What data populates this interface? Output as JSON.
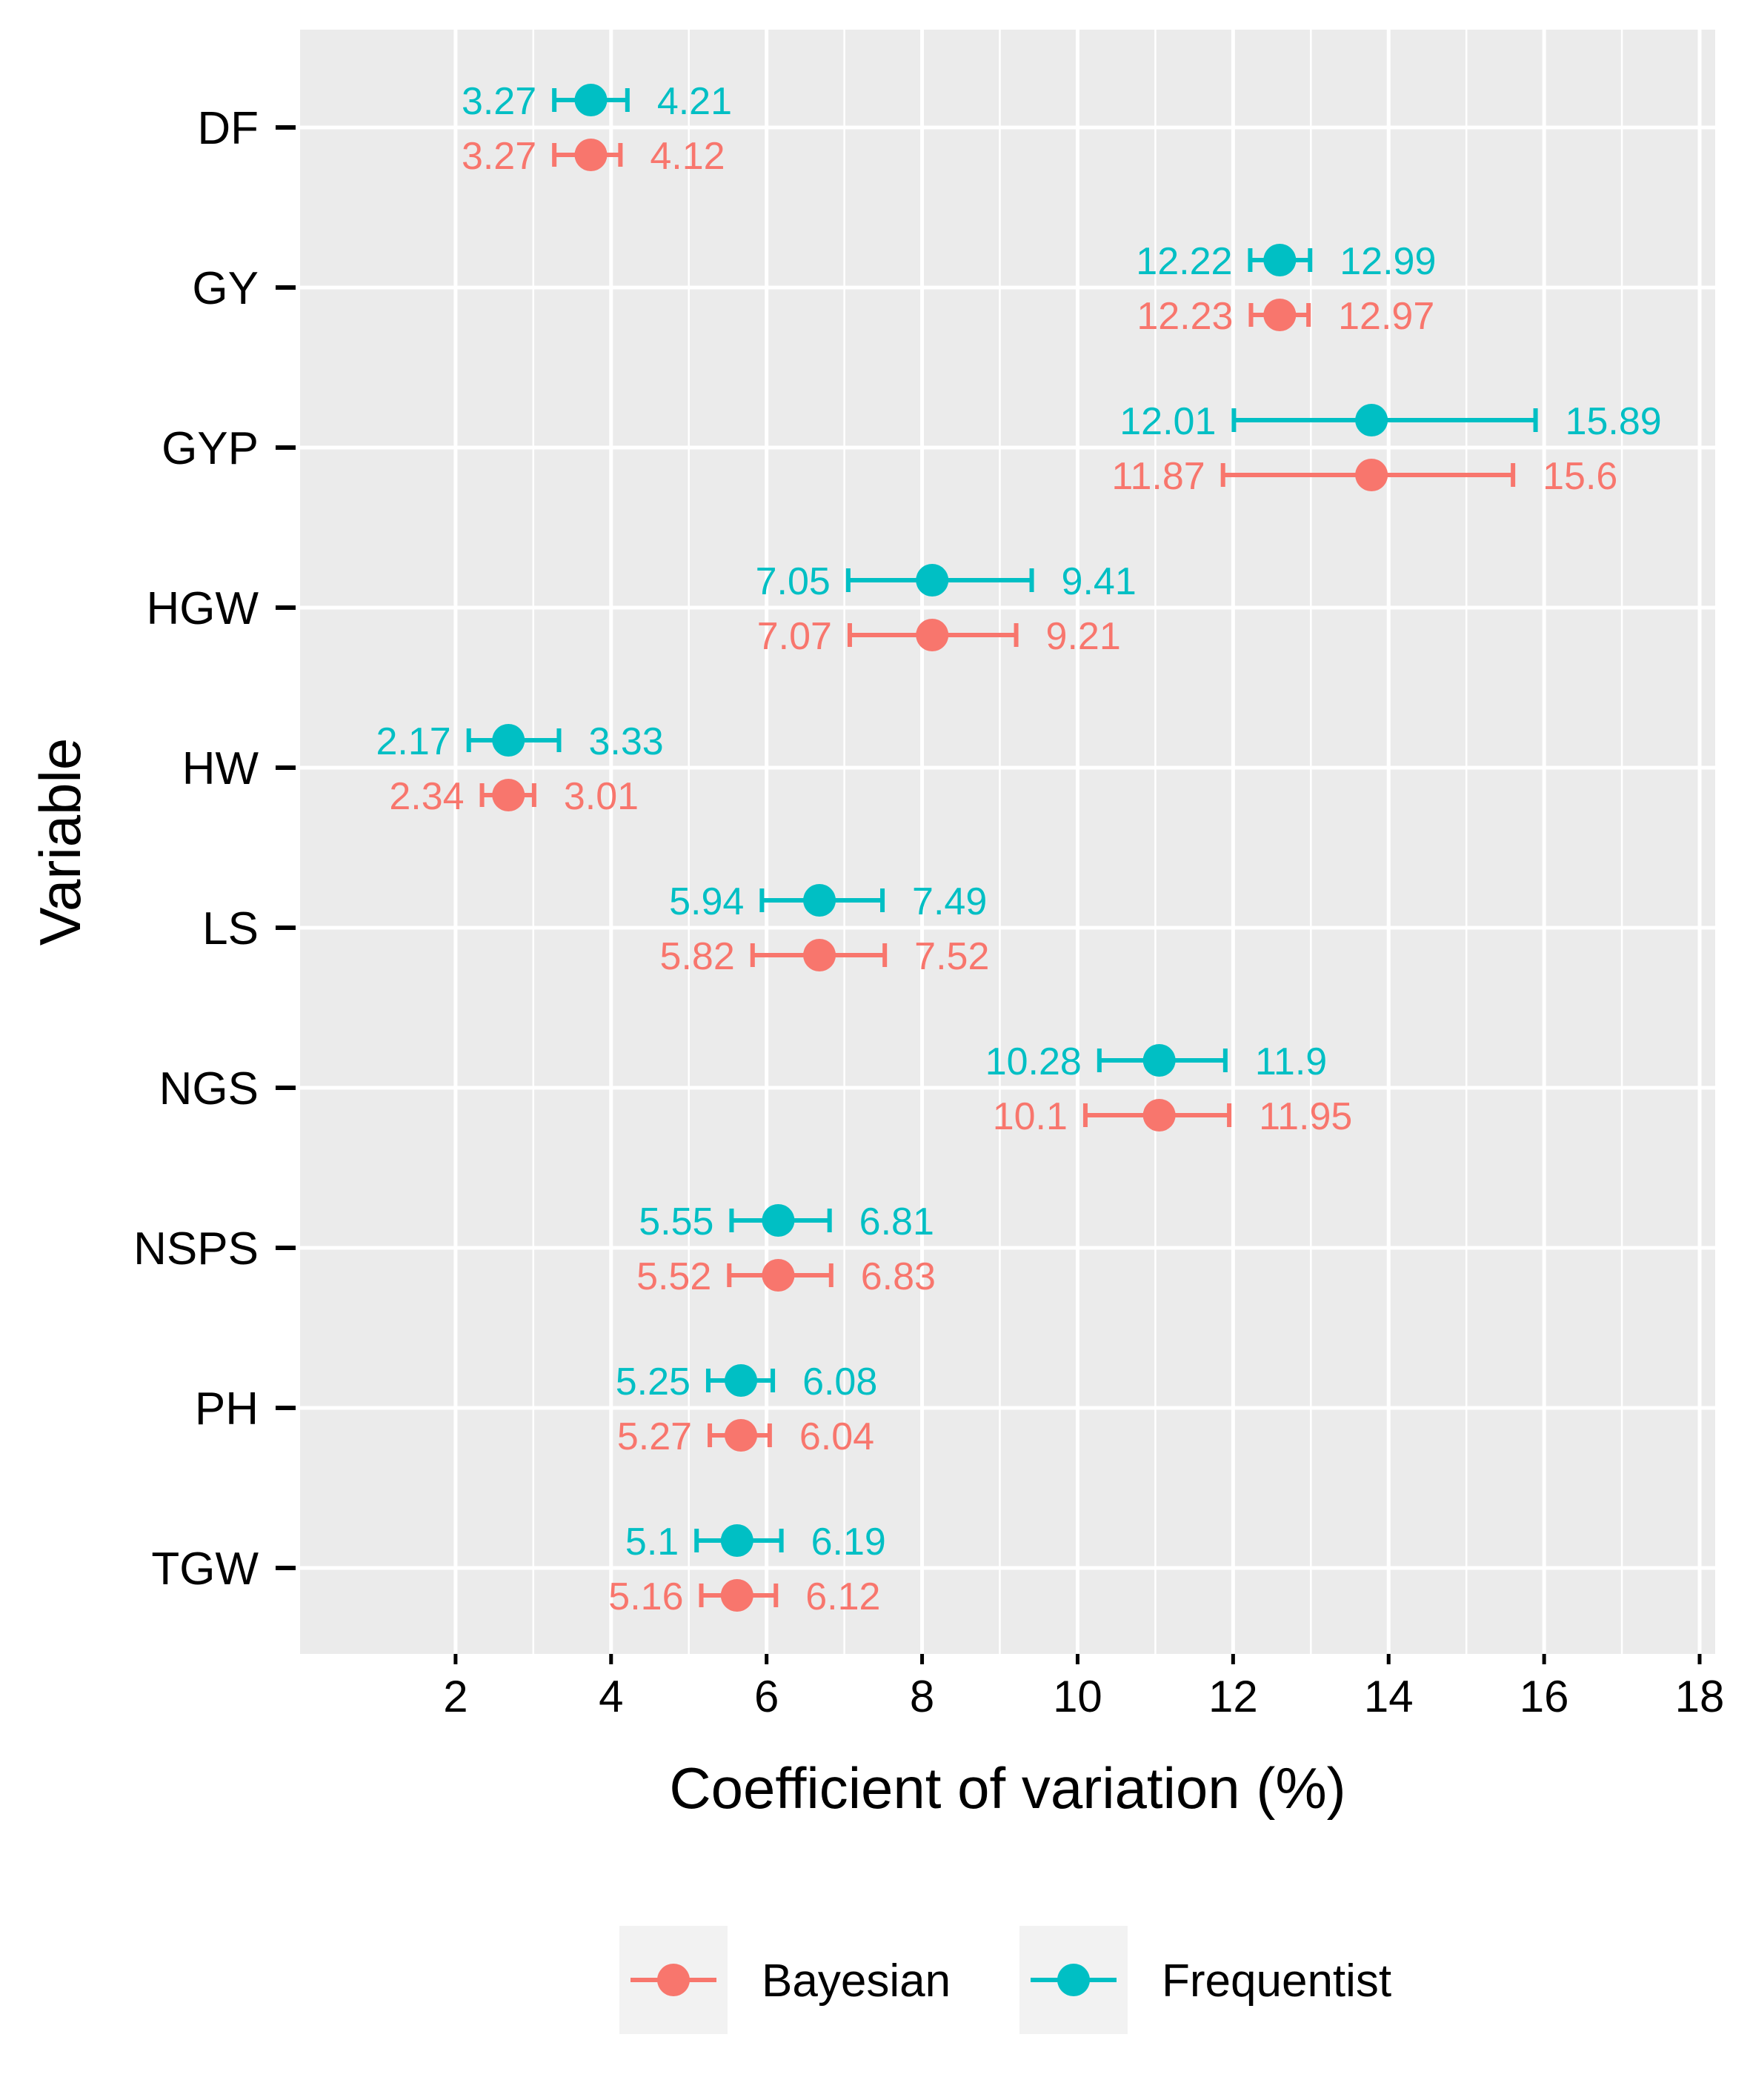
{
  "chart_data": {
    "type": "errorbar",
    "xlabel": "Coefficient of variation (%)",
    "ylabel": "Variable",
    "xlim": [
      0,
      18.2
    ],
    "xticks": [
      "2",
      "4",
      "6",
      "8",
      "10",
      "12",
      "14",
      "16",
      "18"
    ],
    "grid": true,
    "legend_position": "bottom",
    "categories": [
      "DF",
      "GY",
      "GYP",
      "HGW",
      "HW",
      "LS",
      "NGS",
      "NSPS",
      "PH",
      "TGW"
    ],
    "series": [
      {
        "name": "Frequentist",
        "color": "#00BFC4",
        "points": [
          {
            "category": "DF",
            "estimate": 3.74,
            "lower": 3.27,
            "upper": 4.21,
            "lower_label": "3.27",
            "upper_label": "4.21"
          },
          {
            "category": "GY",
            "estimate": 12.6,
            "lower": 12.22,
            "upper": 12.99,
            "lower_label": "12.22",
            "upper_label": "12.99"
          },
          {
            "category": "GYP",
            "estimate": 13.78,
            "lower": 12.01,
            "upper": 15.89,
            "lower_label": "12.01",
            "upper_label": "15.89"
          },
          {
            "category": "HGW",
            "estimate": 8.13,
            "lower": 7.05,
            "upper": 9.41,
            "lower_label": "7.05",
            "upper_label": "9.41"
          },
          {
            "category": "HW",
            "estimate": 2.68,
            "lower": 2.17,
            "upper": 3.33,
            "lower_label": "2.17",
            "upper_label": "3.33"
          },
          {
            "category": "LS",
            "estimate": 6.68,
            "lower": 5.94,
            "upper": 7.49,
            "lower_label": "5.94",
            "upper_label": "7.49"
          },
          {
            "category": "NGS",
            "estimate": 11.05,
            "lower": 10.28,
            "upper": 11.9,
            "lower_label": "10.28",
            "upper_label": "11.9"
          },
          {
            "category": "NSPS",
            "estimate": 6.15,
            "lower": 5.55,
            "upper": 6.81,
            "lower_label": "5.55",
            "upper_label": "6.81"
          },
          {
            "category": "PH",
            "estimate": 5.67,
            "lower": 5.25,
            "upper": 6.08,
            "lower_label": "5.25",
            "upper_label": "6.08"
          },
          {
            "category": "TGW",
            "estimate": 5.62,
            "lower": 5.1,
            "upper": 6.19,
            "lower_label": "5.1",
            "upper_label": "6.19"
          }
        ]
      },
      {
        "name": "Bayesian",
        "color": "#F8766D",
        "points": [
          {
            "category": "DF",
            "estimate": 3.74,
            "lower": 3.27,
            "upper": 4.12,
            "lower_label": "3.27",
            "upper_label": "4.12"
          },
          {
            "category": "GY",
            "estimate": 12.6,
            "lower": 12.23,
            "upper": 12.97,
            "lower_label": "12.23",
            "upper_label": "12.97"
          },
          {
            "category": "GYP",
            "estimate": 13.78,
            "lower": 11.87,
            "upper": 15.6,
            "lower_label": "11.87",
            "upper_label": "15.6"
          },
          {
            "category": "HGW",
            "estimate": 8.13,
            "lower": 7.07,
            "upper": 9.21,
            "lower_label": "7.07",
            "upper_label": "9.21"
          },
          {
            "category": "HW",
            "estimate": 2.68,
            "lower": 2.34,
            "upper": 3.01,
            "lower_label": "2.34",
            "upper_label": "3.01"
          },
          {
            "category": "LS",
            "estimate": 6.68,
            "lower": 5.82,
            "upper": 7.52,
            "lower_label": "5.82",
            "upper_label": "7.52"
          },
          {
            "category": "NGS",
            "estimate": 11.05,
            "lower": 10.1,
            "upper": 11.95,
            "lower_label": "10.1",
            "upper_label": "11.95"
          },
          {
            "category": "NSPS",
            "estimate": 6.15,
            "lower": 5.52,
            "upper": 6.83,
            "lower_label": "5.52",
            "upper_label": "6.83"
          },
          {
            "category": "PH",
            "estimate": 5.67,
            "lower": 5.27,
            "upper": 6.04,
            "lower_label": "5.27",
            "upper_label": "6.04"
          },
          {
            "category": "TGW",
            "estimate": 5.62,
            "lower": 5.16,
            "upper": 6.12,
            "lower_label": "5.16",
            "upper_label": "6.12"
          }
        ]
      }
    ],
    "legend": [
      {
        "name": "Bayesian",
        "color": "#F8766D"
      },
      {
        "name": "Frequentist",
        "color": "#00BFC4"
      }
    ]
  }
}
